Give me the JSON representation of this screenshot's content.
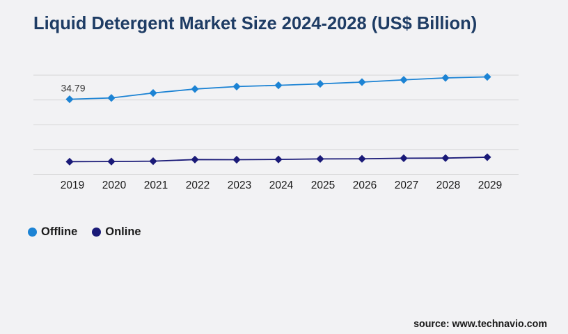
{
  "page": {
    "background": "#f2f2f4",
    "source_note": "source: www.technavio.com"
  },
  "chart_data": {
    "type": "line",
    "title": "Liquid Detergent Market Size 2024-2028 (US$ Billion)",
    "categories": [
      "2019",
      "2020",
      "2021",
      "2022",
      "2023",
      "2024",
      "2025",
      "2026",
      "2027",
      "2028",
      "2029"
    ],
    "series": [
      {
        "name": "Offline",
        "color": "#1c83d4",
        "values": [
          34.79,
          35.3,
          37.3,
          38.9,
          39.9,
          40.4,
          41.0,
          41.7,
          42.6,
          43.4,
          43.8
        ]
      },
      {
        "name": "Online",
        "color": "#1a1a78",
        "values": [
          9.6,
          9.65,
          9.8,
          10.45,
          10.4,
          10.5,
          10.7,
          10.75,
          11.0,
          11.05,
          11.4
        ]
      }
    ],
    "ylim": [
      4.5,
      44.5
    ],
    "gridline_step": 10,
    "grid": "horizontal",
    "legend_position": "bottom-left",
    "y_axis_labels": "none",
    "annotations": [
      {
        "series": "Offline",
        "index": 0,
        "text": "34.79"
      }
    ]
  }
}
